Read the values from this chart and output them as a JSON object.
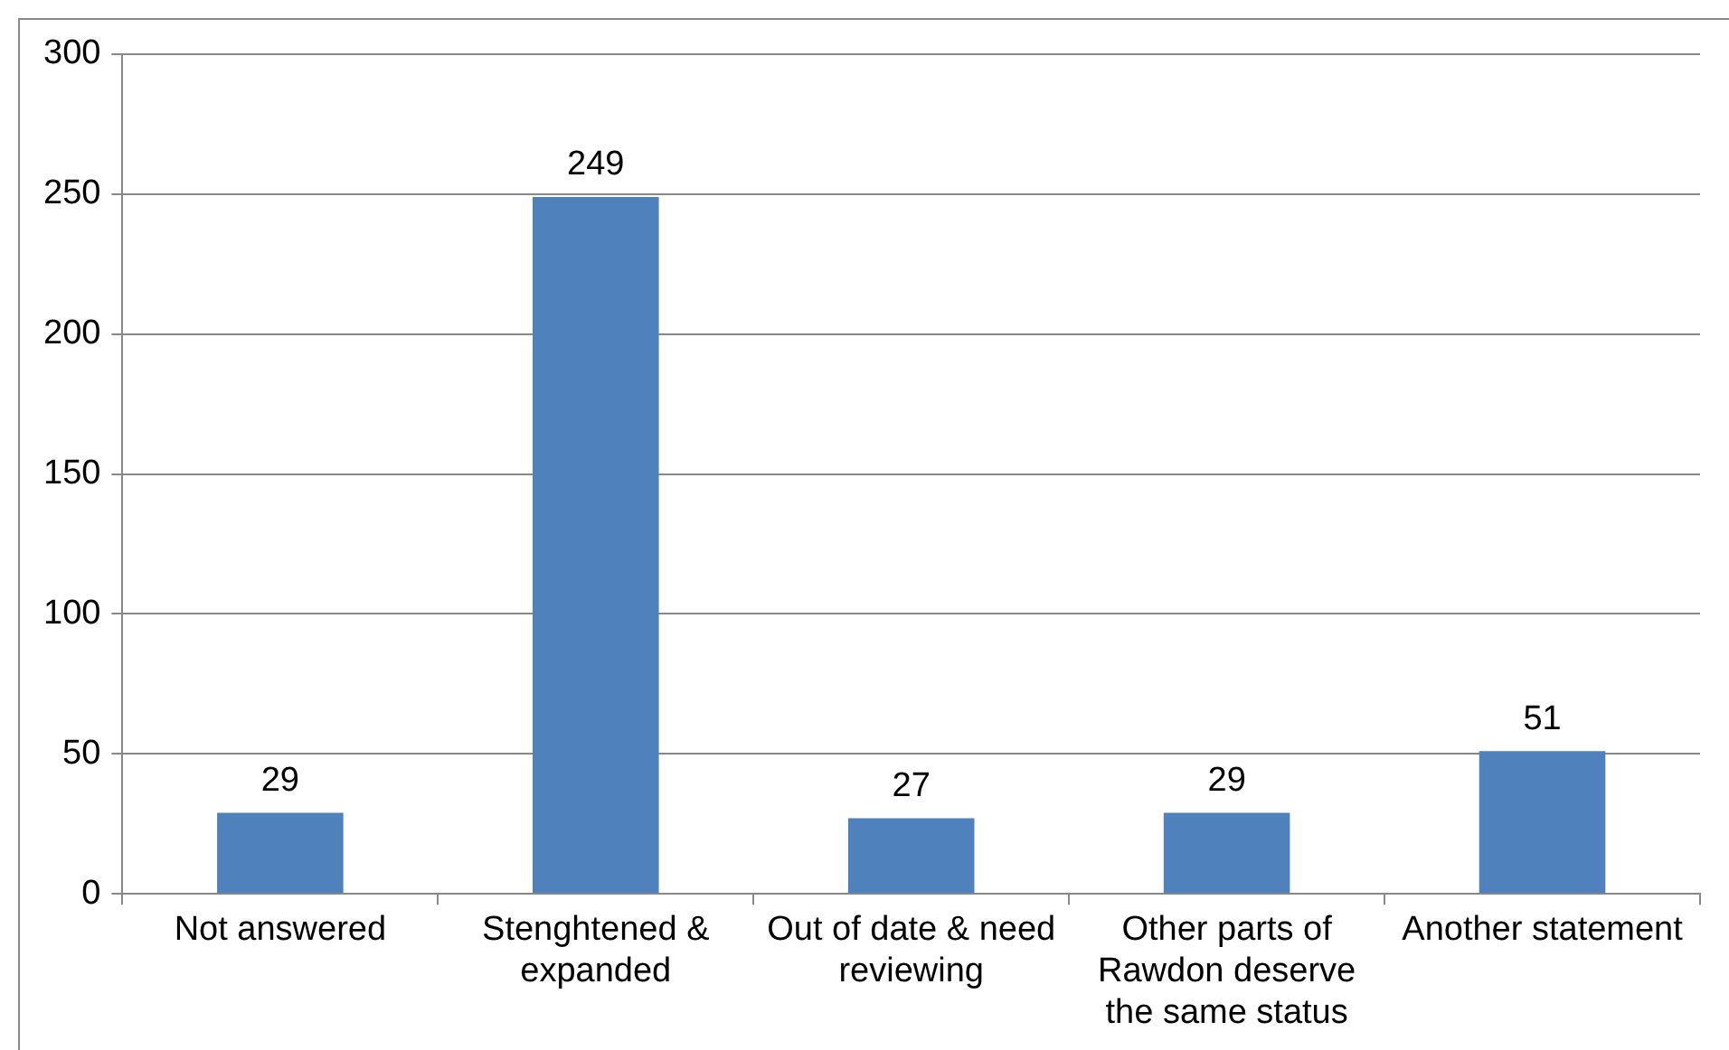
{
  "chart_data": {
    "type": "bar",
    "categories": [
      "Not answered",
      "Stenghtened & expanded",
      "Out of date & need reviewing",
      "Other parts of Rawdon deserve the same status",
      "Another statement"
    ],
    "values": [
      29,
      249,
      27,
      29,
      51
    ],
    "color": "#4f81bd",
    "ylim": [
      0,
      300
    ],
    "yticks": [
      0,
      50,
      100,
      150,
      200,
      250,
      300
    ],
    "grid": "y",
    "legend": false,
    "data_labels": true
  }
}
